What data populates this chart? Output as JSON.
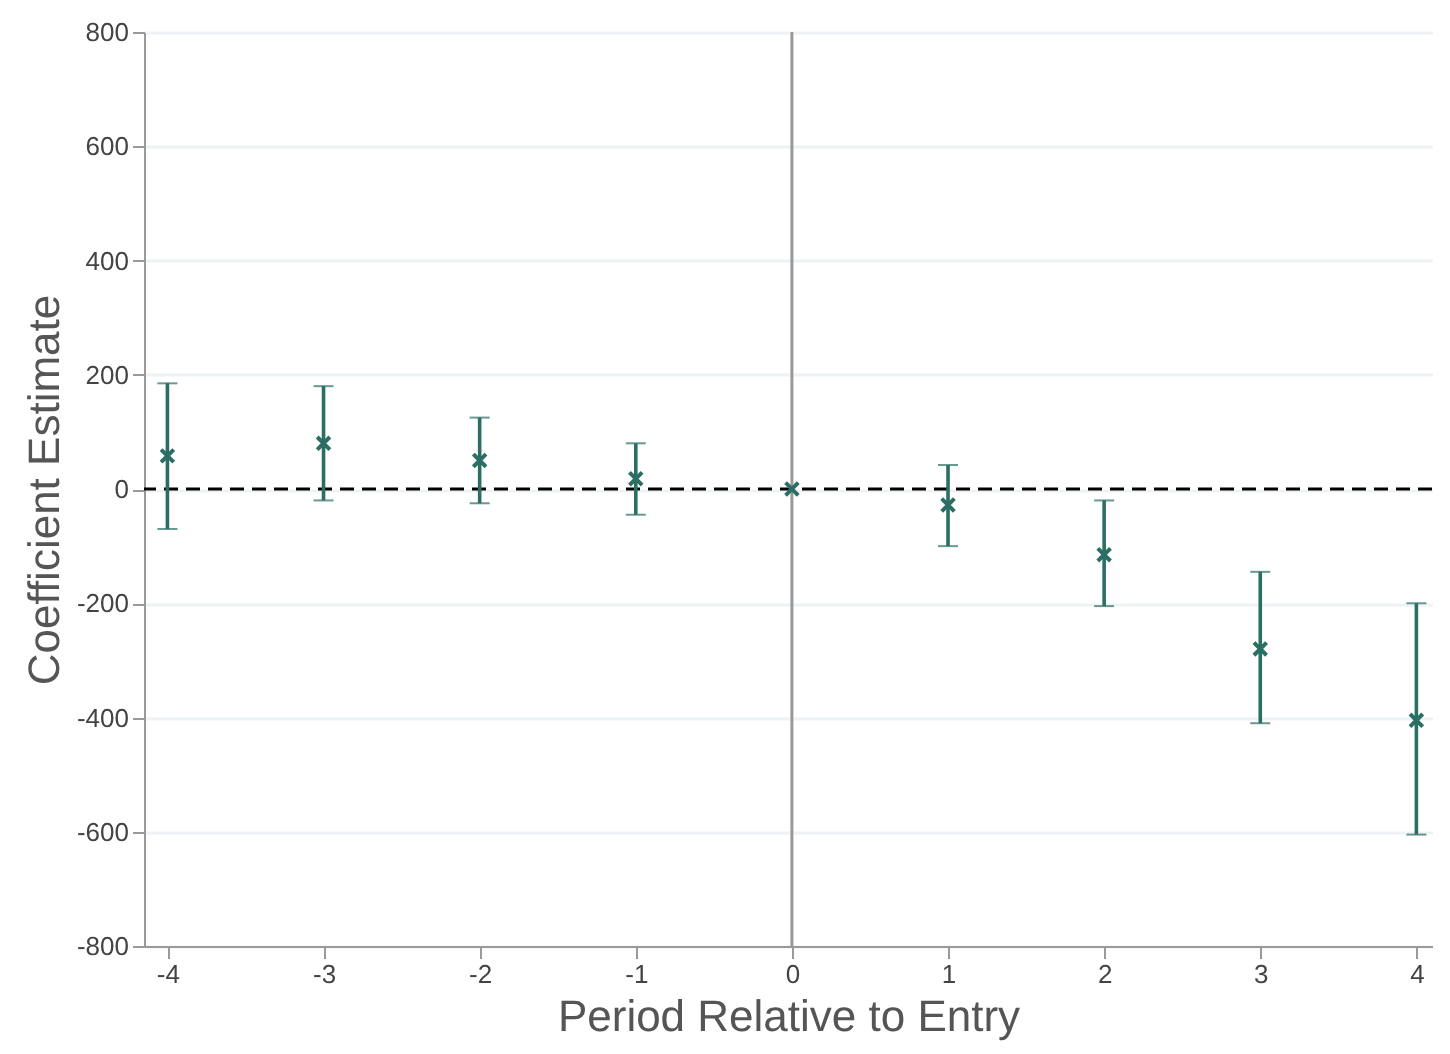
{
  "chart_data": {
    "type": "scatter",
    "xlabel": "Period Relative to Entry",
    "ylabel": "Coefficient Estimate",
    "x": [
      -4,
      -3,
      -2,
      -1,
      0,
      1,
      2,
      3,
      4
    ],
    "series": [
      {
        "color": "#2a6e64",
        "values": [
          58,
          80,
          50,
          18,
          0,
          -28,
          -115,
          -280,
          -405
        ],
        "errors": [
          [
            -70,
            185
          ],
          [
            -20,
            180
          ],
          [
            -25,
            125
          ],
          [
            -45,
            80
          ],
          null,
          [
            -100,
            42
          ],
          [
            -205,
            -20
          ],
          [
            -410,
            -145
          ],
          [
            -605,
            -200
          ]
        ]
      }
    ],
    "xlim": [
      -4.15,
      4.1
    ],
    "xticks": [
      -4,
      -3,
      -2,
      -1,
      0,
      1,
      2,
      3,
      4
    ],
    "ylim": [
      -800,
      800
    ],
    "yticks": [
      -800,
      -600,
      -400,
      -200,
      0,
      200,
      400,
      600,
      800
    ],
    "grid": "y",
    "marker": "cross",
    "ref_lines": [
      {
        "axis": "x",
        "value": 0,
        "color": "#999999",
        "line_style": "solid"
      },
      {
        "axis": "y",
        "value": 0,
        "color": "#000000",
        "line_style": "dashed"
      }
    ]
  }
}
